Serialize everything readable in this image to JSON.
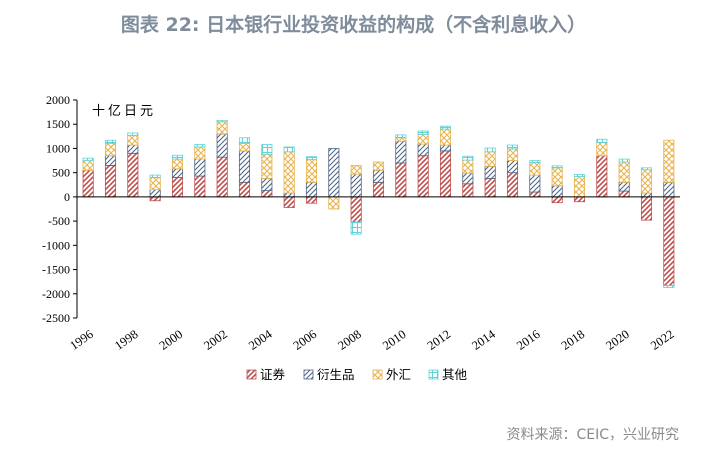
{
  "title": "图表 22: 日本银行业投资收益的构成（不含利息收入）",
  "source": "资料来源：CEIC，兴业研究",
  "chart_data": {
    "type": "bar",
    "stacked": true,
    "unit_label": "十亿日元",
    "ylim": [
      -2500,
      2000
    ],
    "yticks": [
      2000,
      1500,
      1000,
      500,
      0,
      -500,
      -1000,
      -1500,
      -2000,
      -2500
    ],
    "grid": false,
    "legend_position": "bottom",
    "categories": [
      "1996",
      "1997",
      "1998",
      "1999",
      "2000",
      "2001",
      "2002",
      "2003",
      "2004",
      "2005",
      "2006",
      "2007",
      "2008",
      "2009",
      "2010",
      "2011",
      "2012",
      "2013",
      "2014",
      "2015",
      "2016",
      "2017",
      "2018",
      "2019",
      "2020",
      "2021",
      "2022"
    ],
    "xtick_labels": [
      "1996",
      "1998",
      "2000",
      "2002",
      "2004",
      "2006",
      "2008",
      "2010",
      "2012",
      "2014",
      "2016",
      "2018",
      "2020",
      "2022"
    ],
    "series": [
      {
        "name": "证券",
        "color": "#c0504d",
        "values": [
          550,
          650,
          900,
          -80,
          400,
          430,
          820,
          300,
          130,
          -220,
          -130,
          0,
          -520,
          300,
          700,
          850,
          950,
          270,
          380,
          500,
          100,
          -120,
          -100,
          850,
          120,
          -480,
          -1830
        ]
      },
      {
        "name": "衍生品",
        "color": "#4f6785",
        "values": [
          0,
          200,
          170,
          150,
          180,
          350,
          480,
          650,
          250,
          80,
          300,
          1000,
          470,
          250,
          450,
          240,
          120,
          220,
          250,
          250,
          350,
          230,
          0,
          0,
          180,
          80,
          300
        ]
      },
      {
        "name": "外汇",
        "color": "#e8b44f",
        "values": [
          200,
          250,
          200,
          250,
          200,
          250,
          250,
          150,
          500,
          850,
          470,
          -250,
          180,
          170,
          70,
          200,
          330,
          270,
          300,
          240,
          260,
          370,
          420,
          270,
          420,
          480,
          870
        ]
      },
      {
        "name": "其他",
        "color": "#5fd3d8",
        "values": [
          50,
          70,
          50,
          50,
          80,
          50,
          30,
          120,
          200,
          100,
          60,
          0,
          -250,
          0,
          60,
          70,
          60,
          80,
          80,
          80,
          40,
          40,
          40,
          70,
          60,
          40,
          -40
        ]
      }
    ]
  }
}
